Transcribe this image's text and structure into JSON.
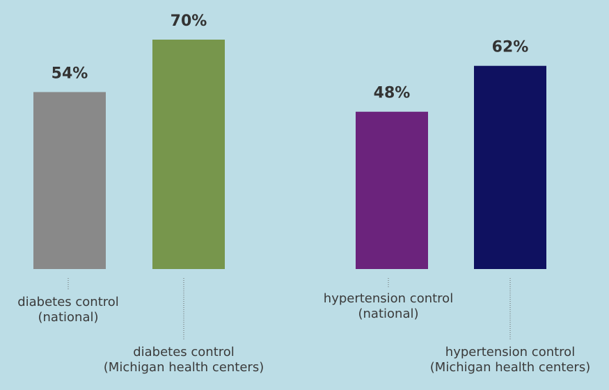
{
  "chart_data": {
    "type": "bar",
    "categories": [
      [
        "diabetes control",
        "(national)"
      ],
      [
        "diabetes control",
        "(Michigan health centers)"
      ],
      [
        "hypertension control",
        "(national)"
      ],
      [
        "hypertension control",
        "(Michigan health centers)"
      ]
    ],
    "values": [
      54,
      70,
      48,
      62
    ],
    "value_labels": [
      "54%",
      "70%",
      "48%",
      "62%"
    ],
    "colors": [
      "#898989",
      "#77964c",
      "#6b237c",
      "#0f1160"
    ],
    "ylim": [
      0,
      70
    ],
    "grid": false,
    "legend": "none",
    "background": "#bcdde6"
  }
}
